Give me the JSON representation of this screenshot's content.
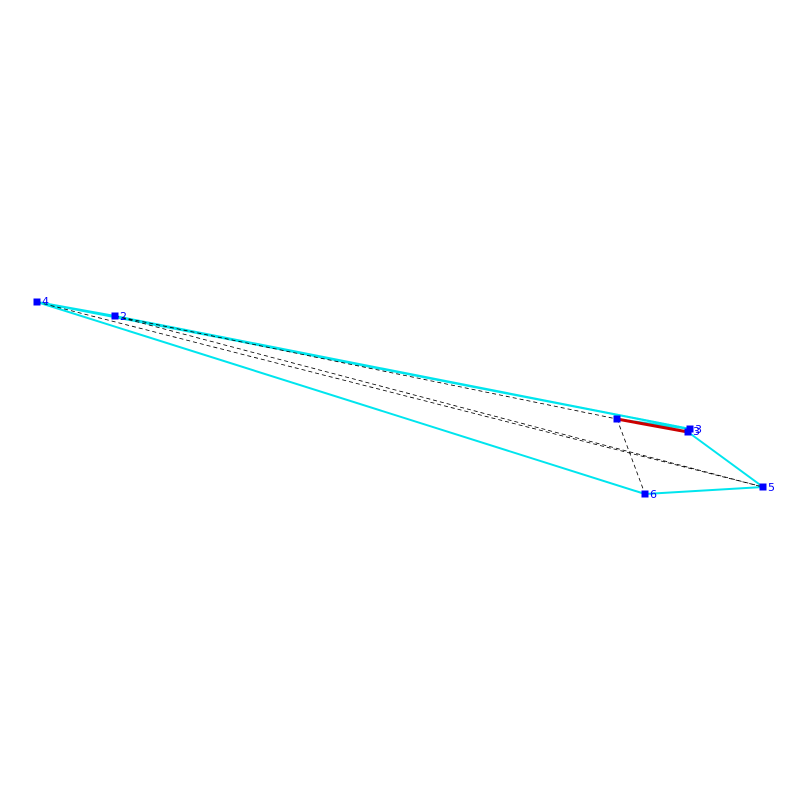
{
  "diagram": {
    "colors": {
      "hull_edge": "#00e5ee",
      "highlight_edge": "#cc0000",
      "dashed_edge": "#000000",
      "vertex": "#0000ff",
      "label": "#0000ff"
    },
    "vertices": [
      {
        "id": "v4",
        "label": "4"
      },
      {
        "id": "v2",
        "label": "2"
      },
      {
        "id": "v1",
        "label": ""
      },
      {
        "id": "v3a",
        "label": "3"
      },
      {
        "id": "v3b",
        "label": "3"
      },
      {
        "id": "v5",
        "label": "5"
      },
      {
        "id": "v6",
        "label": "6"
      }
    ]
  }
}
